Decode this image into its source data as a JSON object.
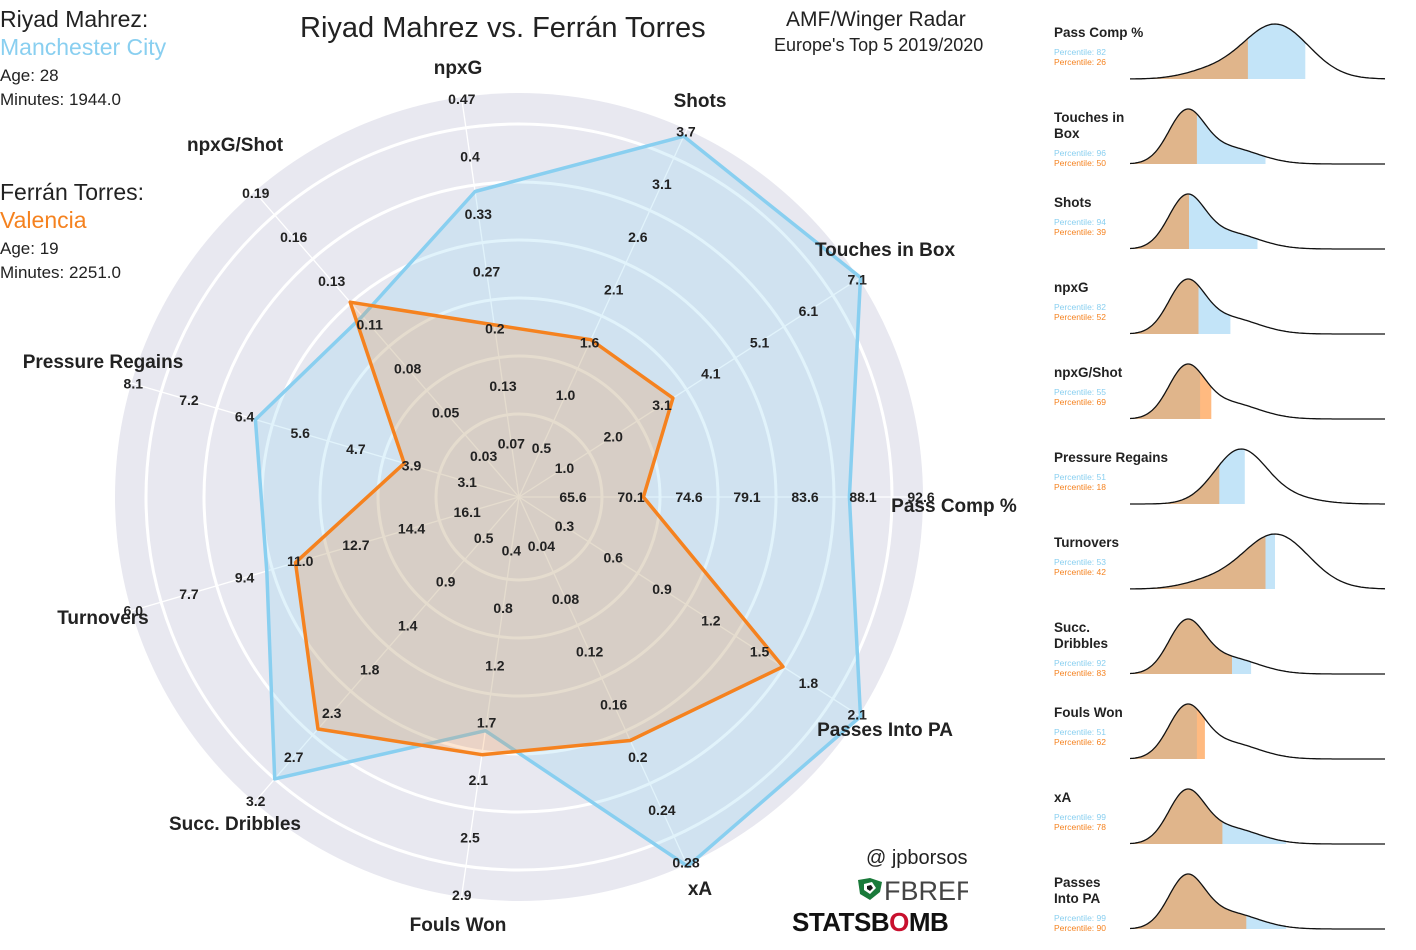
{
  "title": "Riyad Mahrez vs. Ferrán Torres",
  "subtitle": "AMF/Winger Radar",
  "subtitle2": "Europe's Top 5 2019/2020",
  "players": [
    {
      "name": "Riyad Mahrez:",
      "team": "Manchester City",
      "age": "Age: 28",
      "minutes": "Minutes: 1944.0",
      "color": "#89cff0"
    },
    {
      "name": "Ferrán Torres:",
      "team": "Valencia",
      "age": "Age: 19",
      "minutes": "Minutes: 2251.0",
      "color": "#f5821f"
    }
  ],
  "credit": "@ jpborsos",
  "logo_fbref": "FBREF",
  "logo_statsbomb": "STATSBOMB",
  "colors": {
    "mahrez": "#89cff0",
    "torres": "#f5821f",
    "radar_bg": "#e8e8f0",
    "ring": "#ffffff"
  },
  "chart_data": [
    {
      "type": "radar",
      "axes": [
        {
          "label": "Pass Comp %",
          "ticks": [
            "65.6",
            "70.1",
            "74.6",
            "79.1",
            "83.6",
            "88.1",
            "92.6"
          ],
          "min": 65.6,
          "max": 92.6
        },
        {
          "label": "Touches in Box",
          "ticks": [
            "1.0",
            "2.0",
            "3.1",
            "4.1",
            "5.1",
            "6.1",
            "7.1"
          ],
          "min": 0.0,
          "max": 7.1
        },
        {
          "label": "Shots",
          "ticks": [
            "0.5",
            "1.0",
            "1.6",
            "2.1",
            "2.6",
            "3.1",
            "3.7"
          ],
          "min": 0.0,
          "max": 3.7
        },
        {
          "label": "npxG",
          "ticks": [
            "0.07",
            "0.13",
            "0.2",
            "0.27",
            "0.33",
            "0.4",
            "0.47"
          ],
          "min": 0.0,
          "max": 0.47
        },
        {
          "label": "npxG/Shot",
          "ticks": [
            "0.03",
            "0.05",
            "0.08",
            "0.11",
            "0.13",
            "0.16",
            "0.19"
          ],
          "min": 0.0,
          "max": 0.19
        },
        {
          "label": "Pressure Regains",
          "ticks": [
            "3.1",
            "3.9",
            "4.7",
            "5.6",
            "6.4",
            "7.2",
            "8.1"
          ],
          "min": 2.2,
          "max": 8.1
        },
        {
          "label": "Turnovers",
          "ticks": [
            "16.1",
            "14.4",
            "12.7",
            "11.0",
            "9.4",
            "7.7",
            "6.0"
          ],
          "min": 17.8,
          "max": 6.0
        },
        {
          "label": "Succ. Dribbles",
          "ticks": [
            "0.5",
            "0.9",
            "1.4",
            "1.8",
            "2.3",
            "2.7",
            "3.2"
          ],
          "min": 0.0,
          "max": 3.2
        },
        {
          "label": "Fouls Won",
          "ticks": [
            "0.4",
            "0.8",
            "1.2",
            "1.7",
            "2.1",
            "2.5",
            "2.9"
          ],
          "min": 0.0,
          "max": 2.9
        },
        {
          "label": "xA",
          "ticks": [
            "0.04",
            "0.08",
            "0.12",
            "0.16",
            "0.2",
            "0.24",
            "0.28"
          ],
          "min": 0.0,
          "max": 0.28
        },
        {
          "label": "Passes Into PA",
          "ticks": [
            "0.3",
            "0.6",
            "0.9",
            "1.2",
            "1.5",
            "1.8",
            "2.1"
          ],
          "min": 0.0,
          "max": 2.1
        }
      ],
      "series": [
        {
          "name": "Riyad Mahrez",
          "values": [
            86.8,
            7.1,
            3.6,
            0.34,
            0.1,
            5.9,
            10.8,
            2.9,
            1.5,
            0.28,
            2.1
          ]
        },
        {
          "name": "Ferrán Torres",
          "values": [
            71.0,
            2.6,
            1.25,
            0.16,
            0.11,
            3.3,
            11.8,
            2.3,
            1.7,
            0.17,
            1.55
          ]
        }
      ]
    },
    {
      "type": "area",
      "panels": [
        {
          "label": "Pass Comp %",
          "p1": "Percentile: 82",
          "p2": "Percentile: 26",
          "v1": 82,
          "v2": 26,
          "shape": "right"
        },
        {
          "label": "Touches in Box",
          "p1": "Percentile: 96",
          "p2": "Percentile: 50",
          "v1": 96,
          "v2": 50,
          "shape": "left"
        },
        {
          "label": "Shots",
          "p1": "Percentile: 94",
          "p2": "Percentile: 39",
          "v1": 94,
          "v2": 39,
          "shape": "left"
        },
        {
          "label": "npxG",
          "p1": "Percentile: 82",
          "p2": "Percentile: 52",
          "v1": 82,
          "v2": 52,
          "shape": "left"
        },
        {
          "label": "npxG/Shot",
          "p1": "Percentile: 55",
          "p2": "Percentile: 69",
          "v1": 55,
          "v2": 69,
          "shape": "left"
        },
        {
          "label": "Pressure Regains",
          "p1": "Percentile: 51",
          "p2": "Percentile: 18",
          "v1": 51,
          "v2": 18,
          "shape": "mid"
        },
        {
          "label": "Turnovers",
          "p1": "Percentile: 53",
          "p2": "Percentile: 42",
          "v1": 53,
          "v2": 42,
          "shape": "right"
        },
        {
          "label": "Succ. Dribbles",
          "p1": "Percentile: 92",
          "p2": "Percentile: 83",
          "v1": 92,
          "v2": 83,
          "shape": "left"
        },
        {
          "label": "Fouls Won",
          "p1": "Percentile: 51",
          "p2": "Percentile: 62",
          "v1": 51,
          "v2": 62,
          "shape": "left"
        },
        {
          "label": "xA",
          "p1": "Percentile: 99",
          "p2": "Percentile: 78",
          "v1": 99,
          "v2": 78,
          "shape": "left"
        },
        {
          "label": "Passes Into PA",
          "p1": "Percentile: 99",
          "p2": "Percentile: 90",
          "v1": 99,
          "v2": 90,
          "shape": "left"
        }
      ]
    }
  ]
}
